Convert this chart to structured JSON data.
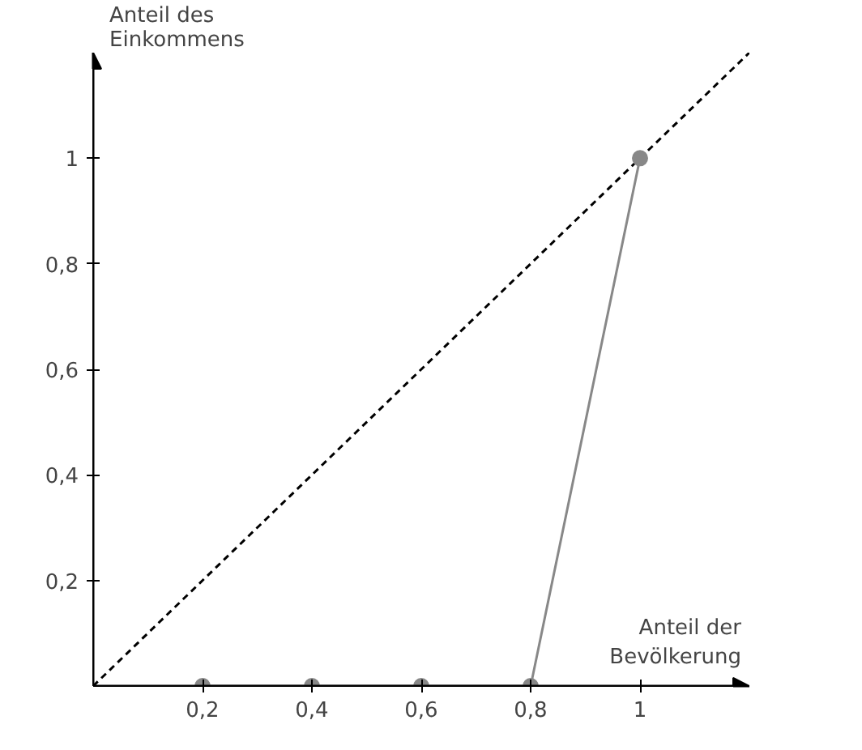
{
  "chart_data": {
    "type": "line",
    "xlabel": "Anteil der Bevölkerung",
    "ylabel": "Anteil des Einkommens",
    "xlim": [
      0,
      1.2
    ],
    "ylim": [
      0,
      1.2
    ],
    "xticks": [
      {
        "value": 0.2,
        "label": "0,2"
      },
      {
        "value": 0.4,
        "label": "0,4"
      },
      {
        "value": 0.6,
        "label": "0,6"
      },
      {
        "value": 0.8,
        "label": "0,8"
      },
      {
        "value": 1,
        "label": "1"
      }
    ],
    "yticks": [
      {
        "value": 0.2,
        "label": "0,2"
      },
      {
        "value": 0.4,
        "label": "0,4"
      },
      {
        "value": 0.6,
        "label": "0,6"
      },
      {
        "value": 0.8,
        "label": "0,8"
      },
      {
        "value": 1,
        "label": "1"
      }
    ],
    "grid": false,
    "series": [
      {
        "x": [
          0,
          1.2
        ],
        "values": [
          0,
          1.2
        ],
        "color": "#000000",
        "line_style": "dashed",
        "marker": "none"
      },
      {
        "x": [
          0.2,
          0.4,
          0.6,
          0.8,
          1
        ],
        "values": [
          0,
          0,
          0,
          0,
          1
        ],
        "color": "#888888",
        "line_style": "solid",
        "marker": "circle"
      }
    ]
  }
}
